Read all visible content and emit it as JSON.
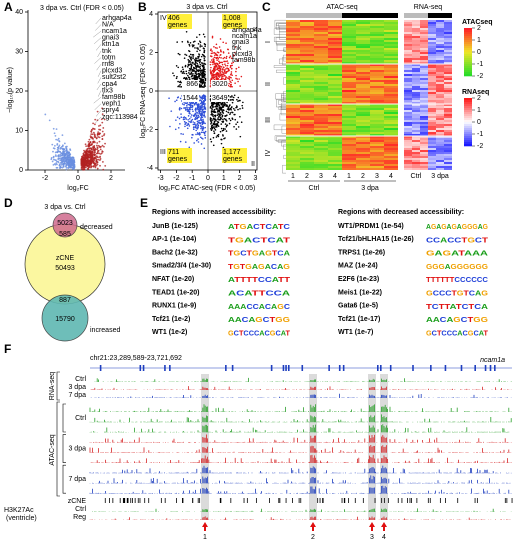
{
  "panels": {
    "A": {
      "label": "A",
      "title": "3 dpa vs. Ctrl (FDR < 0.05)",
      "y_label": "−log₁₀(p value)",
      "x_label": "log₂FC",
      "xticks": [
        -2,
        0,
        2
      ],
      "yticks": [
        0,
        10,
        20,
        30,
        40
      ],
      "genes": [
        {
          "name": "arhgap4a",
          "color": "#000000"
        },
        {
          "name": "N/A",
          "color": "#000000"
        },
        {
          "name": "ncam1a",
          "color": "#e31a1c"
        },
        {
          "name": "gnai3",
          "color": "#e31a1c"
        },
        {
          "name": "ktn1a",
          "color": "#000000"
        },
        {
          "name": "tnk",
          "color": "#e31a1c"
        },
        {
          "name": "totm",
          "color": "#000000"
        },
        {
          "name": "rnf8",
          "color": "#e31a1c"
        },
        {
          "name": "plcxd3",
          "color": "#000000"
        },
        {
          "name": "sult2st2",
          "color": "#000000"
        },
        {
          "name": "cpa4",
          "color": "#000000"
        },
        {
          "name": "tlx3",
          "color": "#000000"
        },
        {
          "name": "fam98b",
          "color": "#000000"
        },
        {
          "name": "veph1",
          "color": "#000000"
        },
        {
          "name": "spry4",
          "color": "#000000"
        },
        {
          "name": "zgc:113984",
          "color": "#000000"
        }
      ]
    },
    "B": {
      "label": "B",
      "title": "3 dpa vs. Ctrl",
      "x_label": "log₂FC ATAC-seq (FDR < 0.05)",
      "y_label": "log₂FC RNA-seq (FDR < 0.05)",
      "xticks": [
        -3,
        -2,
        -1,
        0,
        1,
        2,
        3
      ],
      "yticks": [
        4,
        2,
        0,
        -2,
        -4
      ],
      "quadrants": [
        {
          "roman": "IV",
          "count": "406",
          "unit": "genes"
        },
        {
          "roman": "I",
          "count": "1,008",
          "unit": "genes"
        },
        {
          "roman": "III",
          "count": "711",
          "unit": "genes"
        },
        {
          "roman": "II",
          "count": "1,177",
          "unit": "genes"
        }
      ],
      "center_counts": [
        866,
        3020,
        1544,
        3649
      ],
      "genes": [
        "arhgap4a",
        "ncam1a",
        "gnai3",
        "tnk",
        "plcxd3",
        "fam98b"
      ]
    },
    "C": {
      "label": "C",
      "headers": [
        "ATAC-seq",
        "RNA-seq"
      ],
      "atac_columns": [
        "1",
        "2",
        "3",
        "4",
        "1",
        "2",
        "3",
        "4"
      ],
      "atac_groups": [
        "Ctrl",
        "3 dpa"
      ],
      "rna_groups": [
        "Ctrl",
        "3 dpa"
      ],
      "clusters": [
        "I",
        "II",
        "III",
        "IV"
      ],
      "legends": [
        {
          "title": "ATACseq",
          "ticks": [
            2,
            1,
            0,
            -1,
            -2
          ]
        },
        {
          "title": "RNAseq",
          "ticks": [
            2,
            1,
            0,
            -1,
            -2
          ]
        }
      ]
    },
    "D": {
      "label": "D",
      "title": "3 dpa vs. Ctrl",
      "decreased_count": 5023,
      "decreased_label": "decreased",
      "zcne_name": "zCNE",
      "zcne_count": 50493,
      "increased_count": 15790,
      "increased_label": "increased",
      "overlap_decreased": 585,
      "overlap_increased": 887
    },
    "E": {
      "label": "E",
      "left": {
        "header": "Regions with increased accessibility:",
        "rows": [
          {
            "name": "JunB (1e-125)",
            "motif": "ATGACTCATC"
          },
          {
            "name": "AP-1 (1e-104)",
            "motif": "TGACTCAT"
          },
          {
            "name": "Bach2 (1e-32)",
            "motif": "TGCTGAGTCA"
          },
          {
            "name": "Smad2/3/4 (1e-30)",
            "motif": "TGTGAGACAG"
          },
          {
            "name": "NFAT (1e-20)",
            "motif": "ATTTTCCATT"
          },
          {
            "name": "TEAD1 (1e-20)",
            "motif": "ACATTCCA"
          },
          {
            "name": "RUNX1 (1e-9)",
            "motif": "AAACCACAGC"
          },
          {
            "name": "Tcf21 (1e-2)",
            "motif": "AACAGCTGG"
          },
          {
            "name": "WT1 (1e-2)",
            "motif": "GCTCCCACGCAT"
          }
        ]
      },
      "right": {
        "header": "Regions with decreased accessibility:",
        "rows": [
          {
            "name": "WT1/PRDM1 (1e-54)",
            "motif": "AGAGAGAGGGAG"
          },
          {
            "name": "Tcf21/bHLHA15 (1e-26)",
            "motif": "CCACCTGCT"
          },
          {
            "name": "TRPS1 (1e-26)",
            "motif": "GAGATAAA"
          },
          {
            "name": "MAZ (1e-24)",
            "motif": "GGGAGGGGGG"
          },
          {
            "name": "E2F6 (1e-23)",
            "motif": "TTTTTTCCCCCC"
          },
          {
            "name": "Meis1 (1e-22)",
            "motif": "GCCCTGTCAG"
          },
          {
            "name": "Gata6 (1e-5)",
            "motif": "TCTTATCTCA"
          },
          {
            "name": "Tcf21 (1e-17)",
            "motif": "AACAGCTGG"
          },
          {
            "name": "WT1 (1e-7)",
            "motif": "GCTCCCACGCAT"
          }
        ]
      }
    },
    "F": {
      "label": "F",
      "locus": "chr21:23,289,589-23,721,692",
      "gene": "ncam1a",
      "rna_label": "RNA-seq",
      "atac_label": "ATAC-seq",
      "conditions": [
        {
          "name": "Ctrl",
          "color": "#2ca02c"
        },
        {
          "name": "3 dpa",
          "color": "#d62728"
        },
        {
          "name": "7 dpa",
          "color": "#1f3fbf"
        }
      ],
      "zcne": "zCNE",
      "h3k27ac": "H3K27Ac",
      "tissue": "(ventricle)",
      "h3_tracks": [
        {
          "name": "Ctrl",
          "color": "#2ca02c"
        },
        {
          "name": "Reg",
          "color": "#d62728"
        }
      ],
      "peaks": [
        "1",
        "2",
        "3",
        "4"
      ]
    }
  }
}
